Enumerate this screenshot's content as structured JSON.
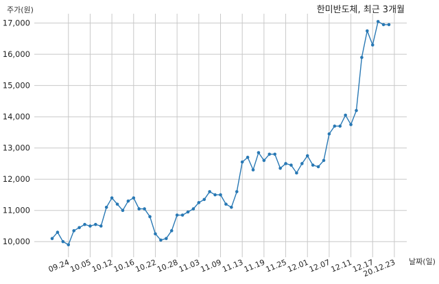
{
  "chart_data": {
    "type": "line",
    "title": "한미반도체, 최근 3개월",
    "ylabel": "주가(원)",
    "xlabel": "날짜(일)",
    "ylim": [
      9500,
      17300
    ],
    "yticks": [
      10000,
      11000,
      12000,
      13000,
      14000,
      15000,
      16000,
      17000
    ],
    "ytick_labels": [
      "10,000",
      "11,000",
      "12,000",
      "13,000",
      "14,000",
      "15,000",
      "16,000",
      "17,000"
    ],
    "grid": true,
    "line_color": "#2878b4",
    "x_tick_labels": [
      {
        "label": "09.24",
        "index": 3
      },
      {
        "label": "10.05",
        "index": 7
      },
      {
        "label": "10.12",
        "index": 11
      },
      {
        "label": "10.16",
        "index": 15
      },
      {
        "label": "10.22",
        "index": 19
      },
      {
        "label": "10.28",
        "index": 23
      },
      {
        "label": "11.03",
        "index": 27
      },
      {
        "label": "11.09",
        "index": 31
      },
      {
        "label": "11.13",
        "index": 35
      },
      {
        "label": "11.19",
        "index": 39
      },
      {
        "label": "11.25",
        "index": 43
      },
      {
        "label": "12.01",
        "index": 47
      },
      {
        "label": "12.07",
        "index": 51
      },
      {
        "label": "12.11",
        "index": 55
      },
      {
        "label": "12.17",
        "index": 59
      },
      {
        "label": "20.12.23",
        "index": 63
      }
    ],
    "series": [
      {
        "values": [
          10100,
          10300,
          10000,
          9900,
          10350,
          10450,
          10550,
          10500,
          10550,
          10500,
          11100,
          11400,
          11200,
          11000,
          11300,
          11400,
          11050,
          11050,
          10800,
          10250,
          10050,
          10100,
          10350,
          10850,
          10850,
          10950,
          11050,
          11250,
          11350,
          11600,
          11500,
          11500,
          11200,
          11100,
          11600,
          12550,
          12700,
          12300,
          12850,
          12600,
          12800,
          12800,
          12350,
          12500,
          12450,
          12200,
          12500,
          12750,
          12450,
          12400,
          12600,
          13450,
          13700,
          13700,
          14050,
          13750,
          14200,
          15900,
          16750,
          16300,
          17050,
          16950,
          16950
        ]
      }
    ]
  }
}
